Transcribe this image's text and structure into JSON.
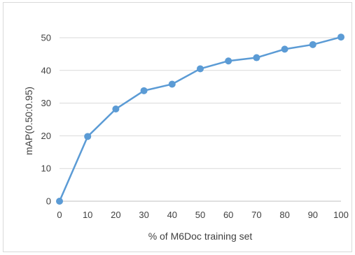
{
  "chart_data": {
    "type": "line",
    "title": "",
    "xlabel": "% of M6Doc training set",
    "ylabel": "mAP(0.50:0.95)",
    "x": [
      0,
      10,
      20,
      30,
      40,
      50,
      60,
      70,
      80,
      90,
      100
    ],
    "xticks": [
      "0",
      "10",
      "20",
      "30",
      "40",
      "50",
      "60",
      "70",
      "80",
      "90",
      "100"
    ],
    "yticks": [
      "0",
      "10",
      "20",
      "30",
      "40",
      "50"
    ],
    "ylim": [
      0,
      55
    ],
    "xlim": [
      0,
      100
    ],
    "grid": true,
    "legend": "none",
    "series": [
      {
        "values": [
          0,
          19.8,
          28.2,
          33.8,
          35.8,
          40.5,
          42.9,
          43.9,
          46.5,
          47.9,
          50.2
        ],
        "color": "#5b9bd5"
      }
    ]
  }
}
